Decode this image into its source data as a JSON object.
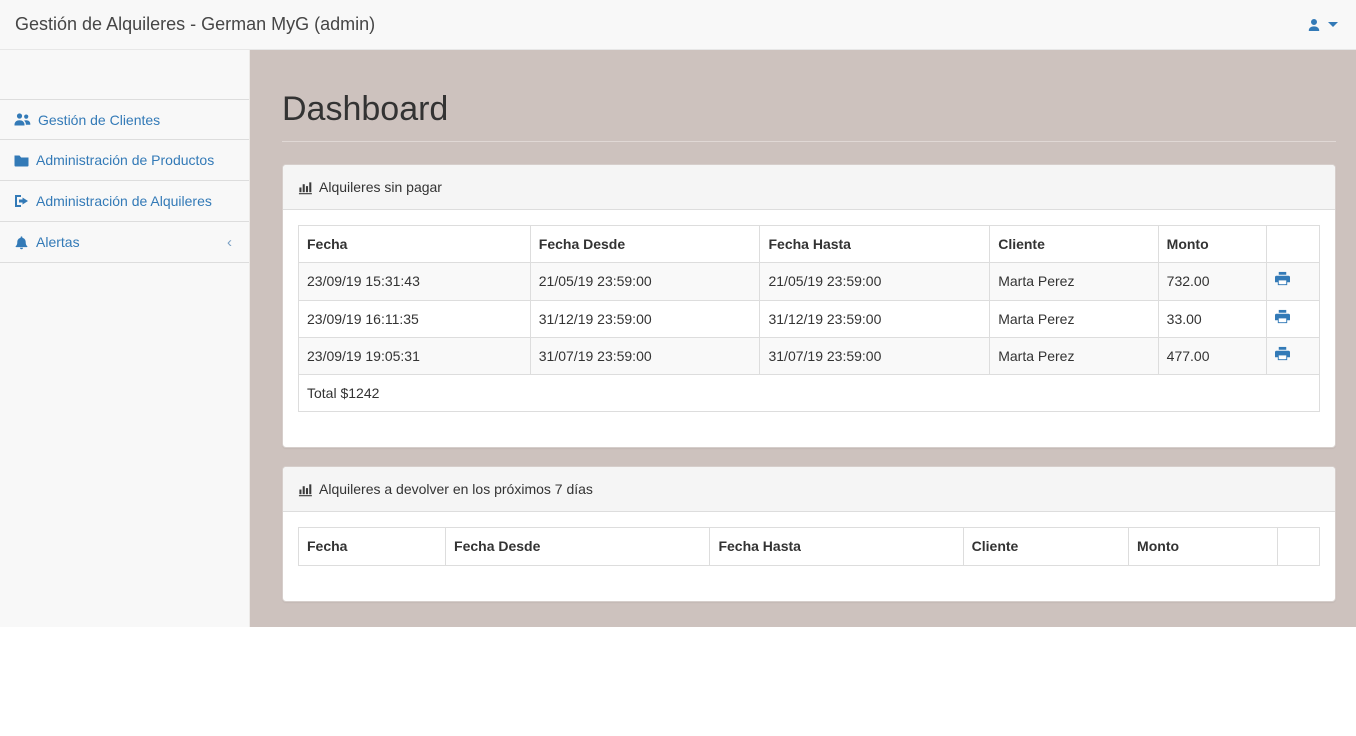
{
  "navbar": {
    "title": "Gestión de Alquileres - German MyG (admin)"
  },
  "sidebar": {
    "items": [
      {
        "label": "Gestión de Clientes",
        "icon": "users-icon"
      },
      {
        "label": "Administración de Productos",
        "icon": "folder-icon"
      },
      {
        "label": "Administración de Alquileres",
        "icon": "sign-out-icon"
      },
      {
        "label": "Alertas",
        "icon": "bell-icon",
        "collapse_indicator": "‹"
      }
    ]
  },
  "main": {
    "title": "Dashboard",
    "panels": [
      {
        "title": "Alquileres sin pagar",
        "icon": "bar-chart-icon",
        "columns": [
          "Fecha",
          "Fecha Desde",
          "Fecha Hasta",
          "Cliente",
          "Monto",
          ""
        ],
        "rows": [
          [
            "23/09/19 15:31:43",
            "21/05/19 23:59:00",
            "21/05/19 23:59:00",
            "Marta Perez",
            "732.00"
          ],
          [
            "23/09/19 16:11:35",
            "31/12/19 23:59:00",
            "31/12/19 23:59:00",
            "Marta Perez",
            "33.00"
          ],
          [
            "23/09/19 19:05:31",
            "31/07/19 23:59:00",
            "31/07/19 23:59:00",
            "Marta Perez",
            "477.00"
          ]
        ],
        "footer": "Total $1242"
      },
      {
        "title": "Alquileres a devolver en los próximos 7 días",
        "icon": "bar-chart-icon",
        "columns": [
          "Fecha",
          "Fecha Desde",
          "Fecha Hasta",
          "Cliente",
          "Monto",
          ""
        ],
        "rows": []
      }
    ]
  },
  "colors": {
    "accent": "#337ab7",
    "main_background": "#cdc2be",
    "panel_heading_background": "#f5f5f5",
    "striped_row": "#f9f9f9"
  }
}
